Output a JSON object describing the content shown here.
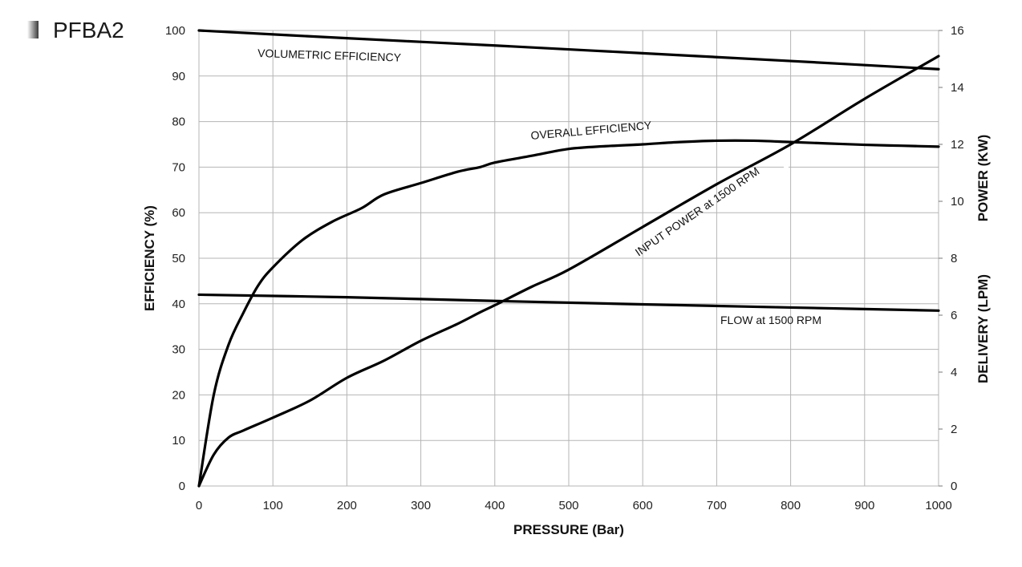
{
  "header": {
    "title": "PFBA2"
  },
  "chart_data": {
    "type": "line",
    "x_axis": {
      "label": "PRESSURE (Bar)",
      "range": [
        0,
        1000
      ],
      "ticks": [
        0,
        100,
        200,
        300,
        400,
        500,
        600,
        700,
        800,
        900,
        1000
      ]
    },
    "y_left": {
      "label": "EFFICIENCY (%)",
      "range": [
        0,
        100
      ],
      "ticks": [
        0,
        10,
        20,
        30,
        40,
        50,
        60,
        70,
        80,
        90,
        100
      ]
    },
    "y_right": {
      "labels": [
        "POWER (KW)",
        "DELIVERY (LPM)"
      ],
      "range": [
        0,
        16
      ],
      "ticks": [
        0,
        2,
        4,
        6,
        8,
        10,
        12,
        14,
        16
      ]
    },
    "grid": true,
    "series": [
      {
        "name": "VOLUMETRIC EFFICIENCY",
        "axis": "left",
        "x": [
          0,
          200,
          400,
          600,
          800,
          1000
        ],
        "y": [
          100,
          98.3,
          96.7,
          95,
          93.3,
          91.5
        ]
      },
      {
        "name": "OVERALL EFFICIENCY",
        "axis": "left",
        "x": [
          0,
          20,
          40,
          60,
          80,
          100,
          140,
          180,
          220,
          250,
          300,
          350,
          380,
          400,
          450,
          500,
          550,
          600,
          650,
          700,
          750,
          800,
          850,
          900,
          950,
          1000
        ],
        "y": [
          0,
          20,
          31,
          38,
          44,
          48,
          54,
          58,
          61,
          64,
          66.5,
          69,
          70,
          71,
          72.5,
          74,
          74.6,
          75,
          75.5,
          75.8,
          75.8,
          75.5,
          75.2,
          74.9,
          74.7,
          74.5
        ]
      },
      {
        "name": "INPUT POWER at 1500 RPM",
        "axis": "right",
        "x": [
          0,
          20,
          40,
          60,
          100,
          150,
          200,
          250,
          300,
          350,
          380,
          400,
          450,
          500,
          600,
          700,
          800,
          900,
          1000
        ],
        "y": [
          0,
          1.1,
          1.7,
          1.95,
          2.4,
          3.0,
          3.8,
          4.4,
          5.1,
          5.7,
          6.1,
          6.35,
          7.0,
          7.6,
          9.1,
          10.6,
          12.0,
          13.6,
          15.1
        ]
      },
      {
        "name": "FLOW at 1500 RPM",
        "axis": "right",
        "x": [
          0,
          200,
          400,
          600,
          800,
          1000
        ],
        "y": [
          6.72,
          6.63,
          6.5,
          6.38,
          6.27,
          6.16
        ]
      }
    ]
  }
}
